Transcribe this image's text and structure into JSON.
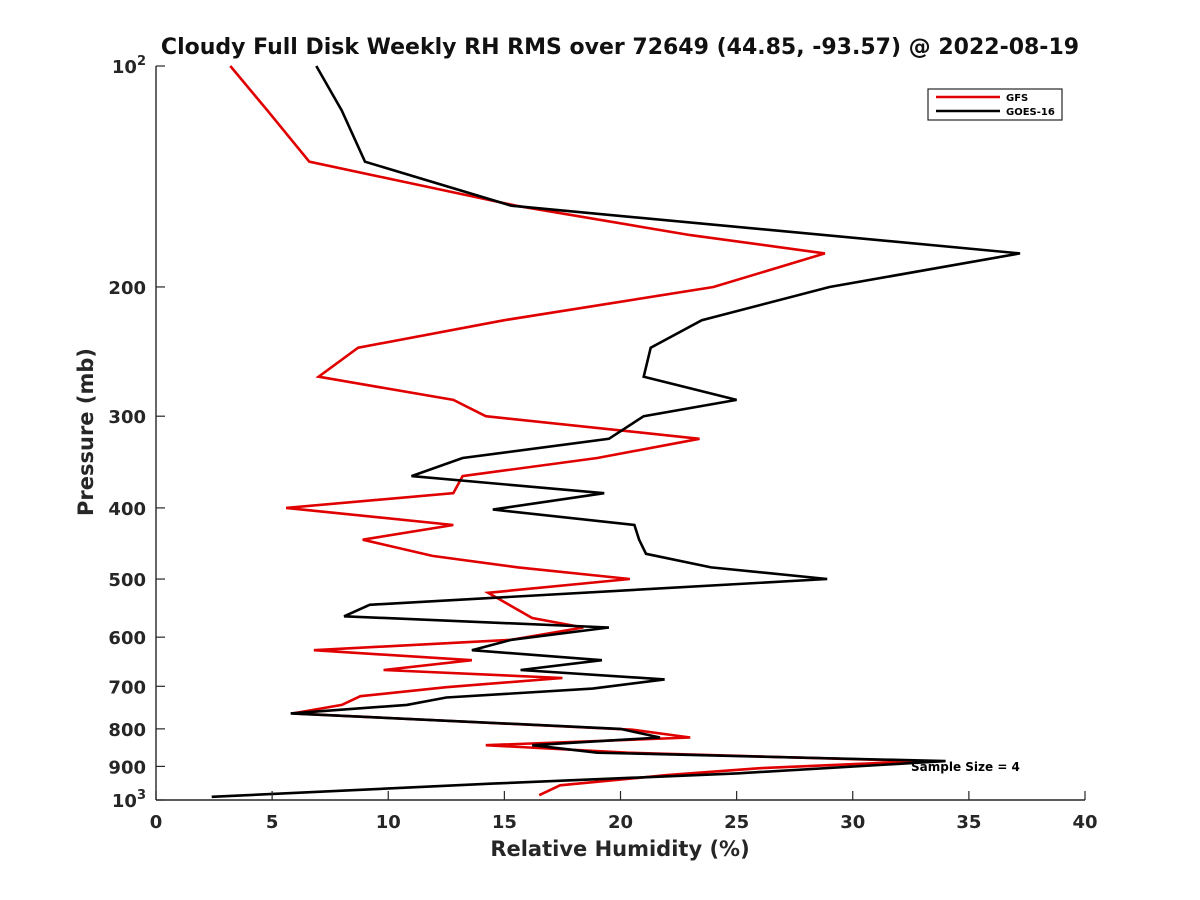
{
  "chart_data": {
    "type": "line",
    "title": "Cloudy Full Disk Weekly RH RMS over 72649 (44.85, -93.57) @ 2022-08-19",
    "xlabel": "Relative Humidity (%)",
    "ylabel": "Pressure (mb)",
    "xlim": [
      0,
      40
    ],
    "ylim": [
      100,
      1000
    ],
    "y_scale": "log",
    "y_reversed": true,
    "x_ticks": [
      "0",
      "5",
      "10",
      "15",
      "20",
      "25",
      "30",
      "35",
      "40"
    ],
    "y_ticks": [
      {
        "value": 100,
        "base": "10",
        "exp": "2",
        "label": ""
      },
      {
        "value": 200,
        "base": "",
        "exp": "",
        "label": "200"
      },
      {
        "value": 300,
        "base": "",
        "exp": "",
        "label": "300"
      },
      {
        "value": 400,
        "base": "",
        "exp": "",
        "label": "400"
      },
      {
        "value": 500,
        "base": "",
        "exp": "",
        "label": "500"
      },
      {
        "value": 600,
        "base": "",
        "exp": "",
        "label": "600"
      },
      {
        "value": 700,
        "base": "",
        "exp": "",
        "label": "700"
      },
      {
        "value": 800,
        "base": "",
        "exp": "",
        "label": "800"
      },
      {
        "value": 900,
        "base": "",
        "exp": "",
        "label": "900"
      },
      {
        "value": 1000,
        "base": "10",
        "exp": "3",
        "label": ""
      }
    ],
    "legend_position": "top-right",
    "annotation": "Sample Size = 4",
    "series": [
      {
        "name": "GFS",
        "color": "#e00000",
        "points": [
          [
            3.2,
            100
          ],
          [
            4.8,
            115
          ],
          [
            6.6,
            135
          ],
          [
            15.5,
            155
          ],
          [
            23,
            170
          ],
          [
            28.8,
            180
          ],
          [
            24,
            200
          ],
          [
            15,
            222
          ],
          [
            8.7,
            242
          ],
          [
            7,
            265
          ],
          [
            12.8,
            285
          ],
          [
            14.2,
            300
          ],
          [
            23.4,
            322
          ],
          [
            19,
            342
          ],
          [
            13.2,
            362
          ],
          [
            12.8,
            382
          ],
          [
            5.6,
            400
          ],
          [
            12.8,
            422
          ],
          [
            8.9,
            442
          ],
          [
            11.9,
            465
          ],
          [
            15.6,
            482
          ],
          [
            20.4,
            500
          ],
          [
            14.3,
            522
          ],
          [
            15.2,
            542
          ],
          [
            16.2,
            565
          ],
          [
            18.4,
            582
          ],
          [
            15.3,
            605
          ],
          [
            6.8,
            625
          ],
          [
            13.6,
            645
          ],
          [
            9.8,
            665
          ],
          [
            17.5,
            682
          ],
          [
            12.5,
            702
          ],
          [
            8.8,
            722
          ],
          [
            8,
            742
          ],
          [
            5.9,
            762
          ],
          [
            20.5,
            802
          ],
          [
            23,
            822
          ],
          [
            14.2,
            842
          ],
          [
            20.3,
            862
          ],
          [
            33,
            885
          ],
          [
            26,
            905
          ],
          [
            22,
            925
          ],
          [
            17.4,
            955
          ],
          [
            16.5,
            985
          ]
        ]
      },
      {
        "name": "GOES-16",
        "color": "#000000",
        "points": [
          [
            6.9,
            100
          ],
          [
            8,
            115
          ],
          [
            9,
            135
          ],
          [
            15.3,
            155
          ],
          [
            37.2,
            180
          ],
          [
            29,
            200
          ],
          [
            23.5,
            222
          ],
          [
            21.3,
            242
          ],
          [
            21,
            265
          ],
          [
            25,
            285
          ],
          [
            21,
            300
          ],
          [
            19.5,
            322
          ],
          [
            13.2,
            342
          ],
          [
            11,
            362
          ],
          [
            19.3,
            382
          ],
          [
            14.5,
            402
          ],
          [
            20.6,
            422
          ],
          [
            20.8,
            442
          ],
          [
            21.1,
            462
          ],
          [
            23.9,
            482
          ],
          [
            28.9,
            500
          ],
          [
            9.2,
            542
          ],
          [
            8.1,
            562
          ],
          [
            19.5,
            582
          ],
          [
            15.3,
            605
          ],
          [
            13.6,
            625
          ],
          [
            19.2,
            645
          ],
          [
            15.7,
            665
          ],
          [
            21.9,
            685
          ],
          [
            18.8,
            705
          ],
          [
            12.5,
            725
          ],
          [
            10.8,
            742
          ],
          [
            5.8,
            762
          ],
          [
            20,
            800
          ],
          [
            21.7,
            822
          ],
          [
            16.2,
            842
          ],
          [
            19,
            862
          ],
          [
            34,
            885
          ],
          [
            25,
            920
          ],
          [
            14.5,
            950
          ],
          [
            2.4,
            990
          ]
        ]
      }
    ]
  }
}
